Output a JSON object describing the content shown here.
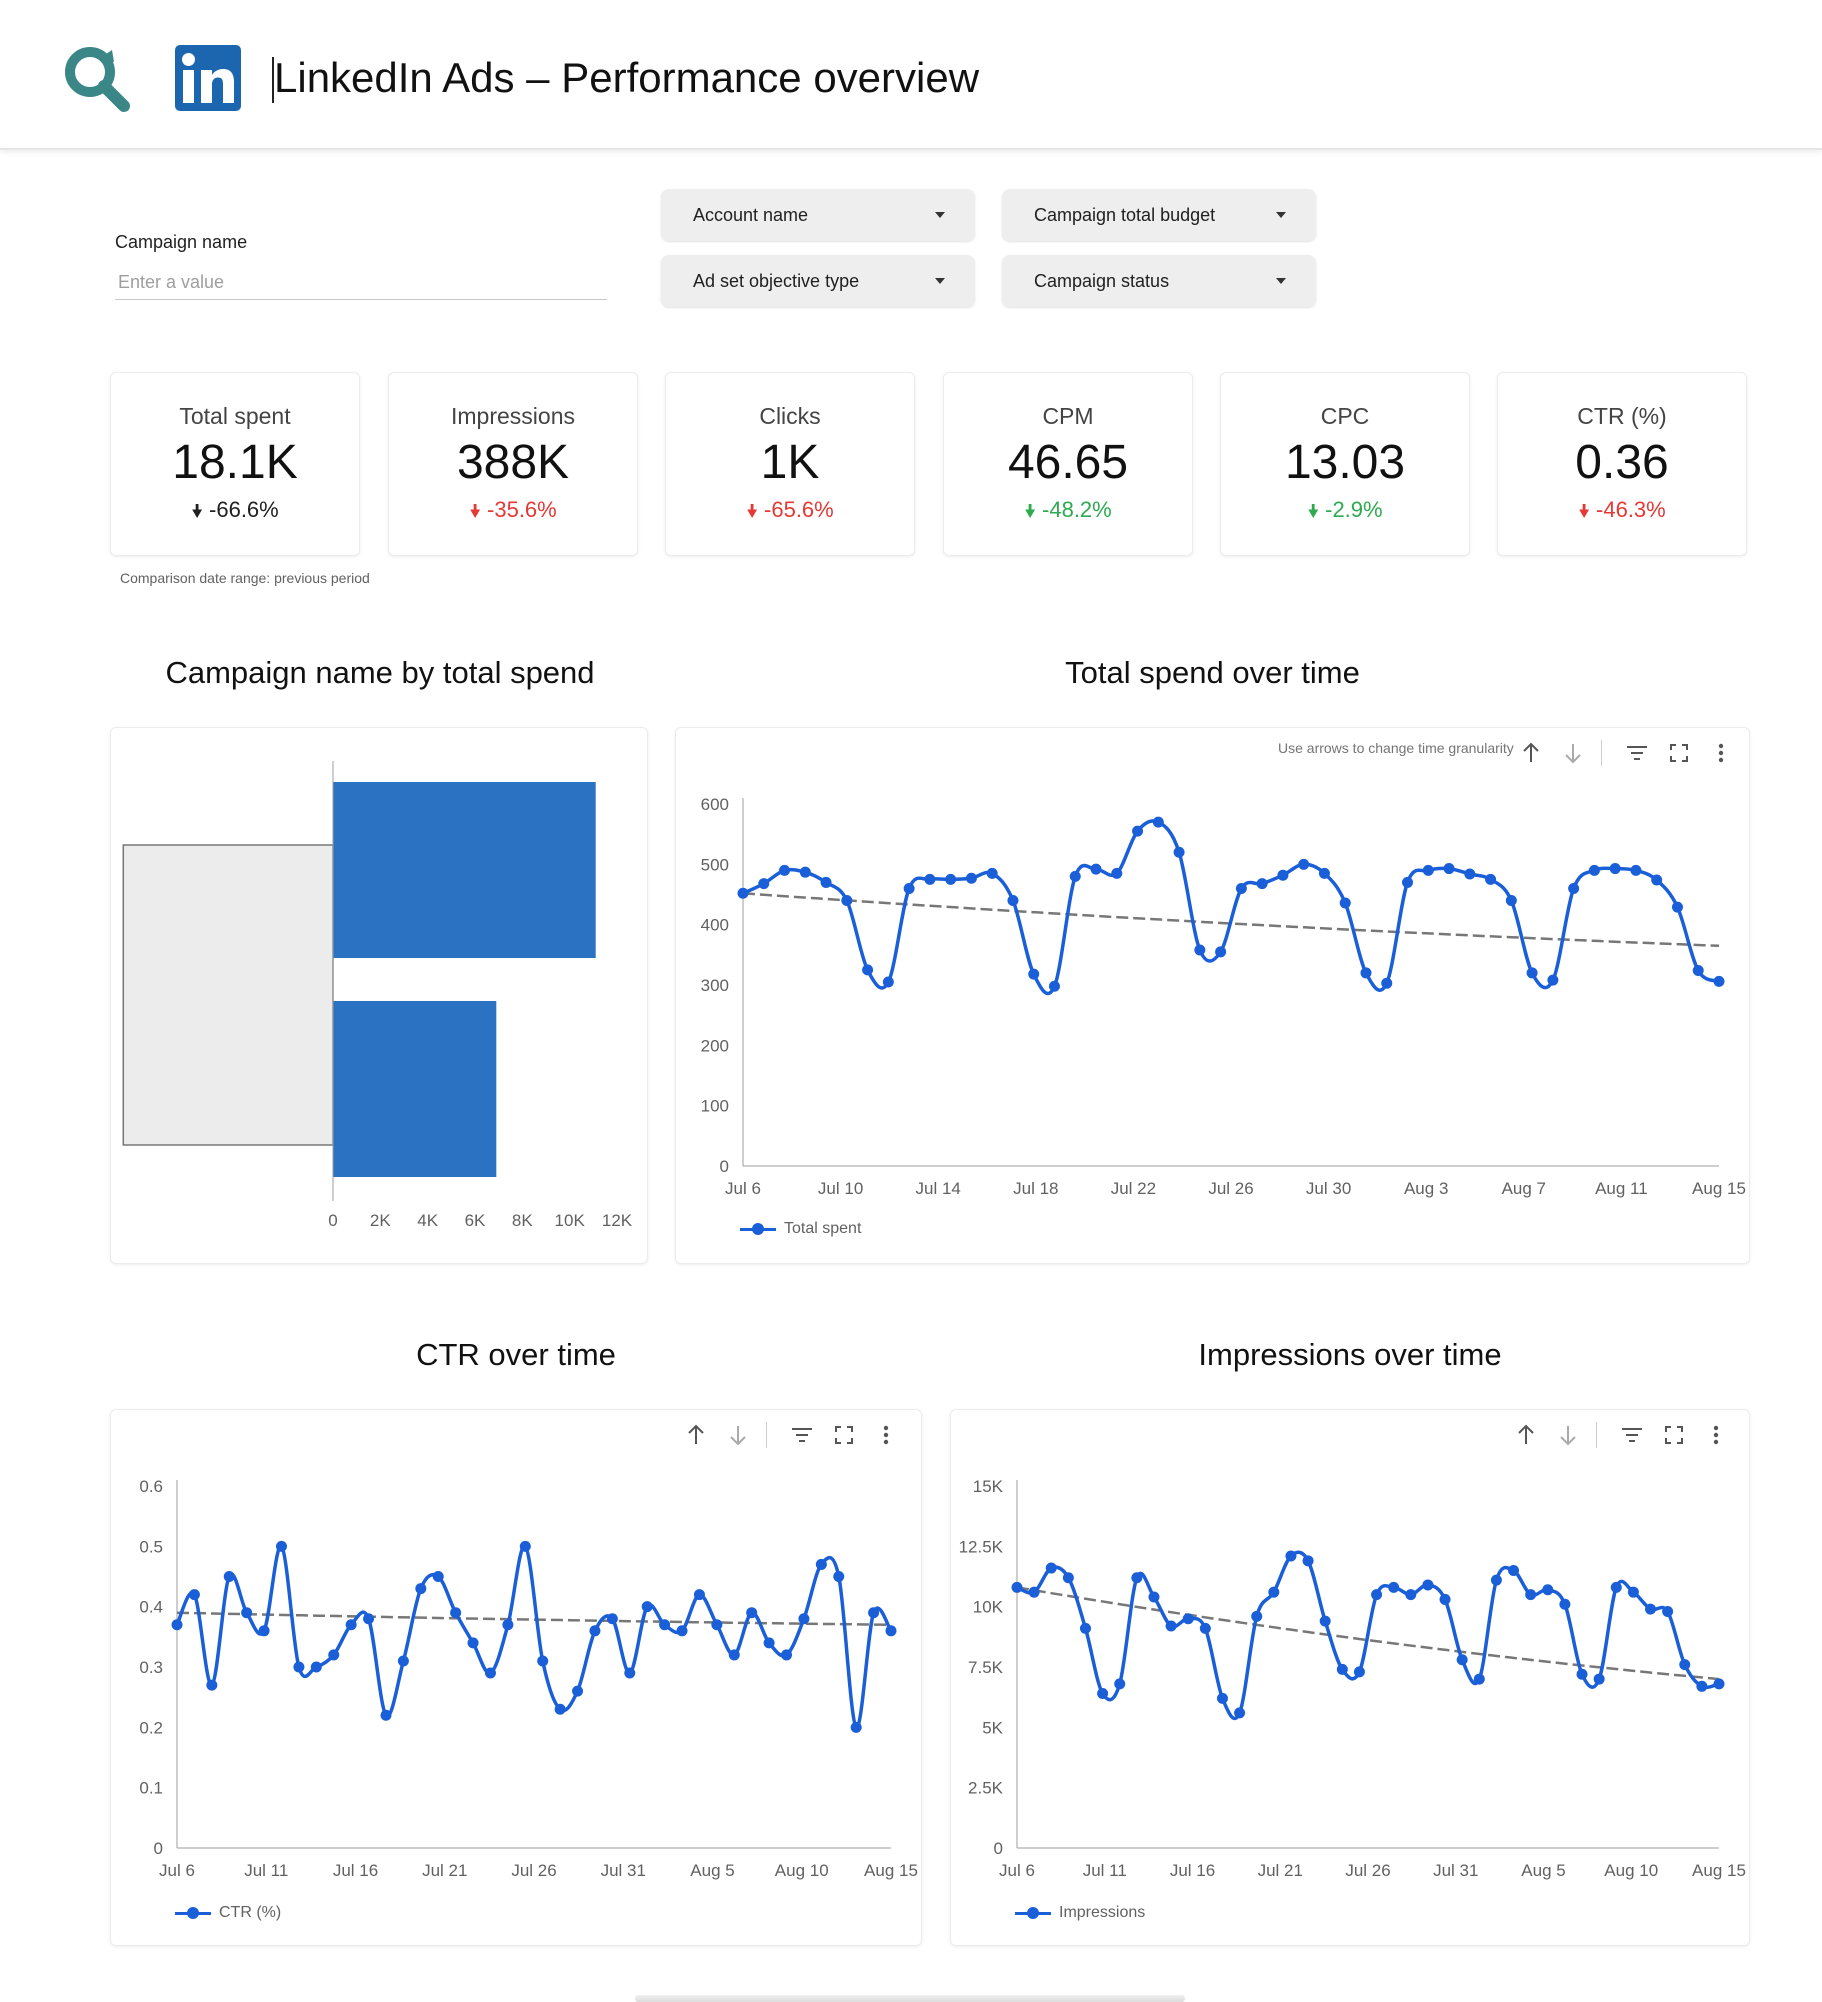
{
  "header": {
    "title": "LinkedIn Ads – Performance overview",
    "search_icon": "magnifier-icon",
    "brand_icon": "linkedin-logo",
    "accent": "#3b8686",
    "linkedin_blue": "#1c66b0"
  },
  "filters": {
    "campaign_name_label": "Campaign name",
    "campaign_name_placeholder": "Enter a value",
    "dropdowns": [
      {
        "label": "Account name"
      },
      {
        "label": "Campaign total budget"
      },
      {
        "label": "Ad set objective type"
      },
      {
        "label": "Campaign status"
      }
    ]
  },
  "kpis": [
    {
      "label": "Total spent",
      "value": "18.1K",
      "delta": "-66.6%",
      "color": "#212121"
    },
    {
      "label": "Impressions",
      "value": "388K",
      "delta": "-35.6%",
      "color": "#e53935"
    },
    {
      "label": "Clicks",
      "value": "1K",
      "delta": "-65.6%",
      "color": "#e53935"
    },
    {
      "label": "CPM",
      "value": "46.65",
      "delta": "-48.2%",
      "color": "#2eaa4f"
    },
    {
      "label": "CPC",
      "value": "13.03",
      "delta": "-2.9%",
      "color": "#2eaa4f"
    },
    {
      "label": "CTR (%)",
      "value": "0.36",
      "delta": "-46.3%",
      "color": "#e53935"
    }
  ],
  "comparison_note": "Comparison date range: previous period",
  "sections": {
    "bar_title": "Campaign name by total spend",
    "spend_title": "Total spend over time",
    "ctr_title": "CTR over time",
    "impr_title": "Impressions over time"
  },
  "granularity_hint": "Use arrows to change time granularity",
  "toolbar_icons": [
    "arrow-up-icon",
    "arrow-down-icon",
    "filter-icon",
    "fullscreen-icon",
    "more-vert-icon"
  ],
  "chart_data": [
    {
      "type": "bar",
      "orientation": "horizontal",
      "categories": [
        "",
        ""
      ],
      "values": [
        11100,
        6900
      ],
      "comparison_values": [
        9000,
        9000
      ],
      "xlim": [
        0,
        12000
      ],
      "xticks": [
        "0",
        "2K",
        "4K",
        "6K",
        "8K",
        "10K",
        "12K"
      ],
      "color": "#2c72c2",
      "comparison_color": "#ececec"
    },
    {
      "type": "line",
      "title": "Total spend over time",
      "series": [
        {
          "name": "Total spent",
          "values": [
            452,
            468,
            490,
            487,
            470,
            440,
            325,
            305,
            460,
            475,
            475,
            477,
            485,
            440,
            318,
            298,
            480,
            492,
            485,
            555,
            570,
            520,
            358,
            355,
            460,
            468,
            482,
            500,
            485,
            436,
            320,
            303,
            470,
            490,
            493,
            484,
            475,
            440,
            320,
            308,
            460,
            490,
            493,
            490,
            474,
            429,
            324,
            306
          ]
        }
      ],
      "trend_endpoints": [
        452,
        365
      ],
      "ylim": [
        0,
        600
      ],
      "yticks": [
        "0",
        "100",
        "200",
        "300",
        "400",
        "500",
        "600"
      ],
      "xticks": [
        "Jul 6",
        "Jul 10",
        "Jul 14",
        "Jul 18",
        "Jul 22",
        "Jul 26",
        "Jul 30",
        "Aug 3",
        "Aug 7",
        "Aug 11",
        "Aug 15"
      ],
      "legend": "bottom-left"
    },
    {
      "type": "line",
      "title": "CTR over time",
      "series": [
        {
          "name": "CTR (%)",
          "values": [
            0.37,
            0.42,
            0.27,
            0.45,
            0.39,
            0.36,
            0.5,
            0.3,
            0.3,
            0.32,
            0.37,
            0.38,
            0.22,
            0.31,
            0.43,
            0.45,
            0.39,
            0.34,
            0.29,
            0.37,
            0.5,
            0.31,
            0.23,
            0.26,
            0.36,
            0.38,
            0.29,
            0.4,
            0.37,
            0.36,
            0.42,
            0.37,
            0.32,
            0.39,
            0.34,
            0.32,
            0.38,
            0.47,
            0.45,
            0.2,
            0.39,
            0.36
          ]
        }
      ],
      "trend_endpoints": [
        0.39,
        0.37
      ],
      "ylim": [
        0,
        0.6
      ],
      "yticks": [
        "0",
        "0.1",
        "0.2",
        "0.3",
        "0.4",
        "0.5",
        "0.6"
      ],
      "xticks": [
        "Jul 6",
        "Jul 11",
        "Jul 16",
        "Jul 21",
        "Jul 26",
        "Jul 31",
        "Aug 5",
        "Aug 10",
        "Aug 15"
      ],
      "legend": "bottom-left"
    },
    {
      "type": "line",
      "title": "Impressions over time",
      "series": [
        {
          "name": "Impressions",
          "values": [
            10800,
            10600,
            11600,
            11200,
            9100,
            6400,
            6800,
            11200,
            10400,
            9200,
            9500,
            9100,
            6200,
            5600,
            9600,
            10600,
            12100,
            11900,
            9400,
            7400,
            7300,
            10500,
            10800,
            10500,
            10900,
            10300,
            7800,
            7000,
            11100,
            11500,
            10500,
            10700,
            10100,
            7200,
            7000,
            10800,
            10600,
            9900,
            9800,
            7600,
            6700,
            6800
          ]
        }
      ],
      "trend_endpoints": [
        10800,
        7000
      ],
      "ylim": [
        0,
        15000
      ],
      "yticks": [
        "0",
        "2.5K",
        "5K",
        "7.5K",
        "10K",
        "12.5K",
        "15K"
      ],
      "xticks": [
        "Jul 6",
        "Jul 11",
        "Jul 16",
        "Jul 21",
        "Jul 26",
        "Jul 31",
        "Aug 5",
        "Aug 10",
        "Aug 15"
      ],
      "legend": "bottom-left"
    }
  ]
}
